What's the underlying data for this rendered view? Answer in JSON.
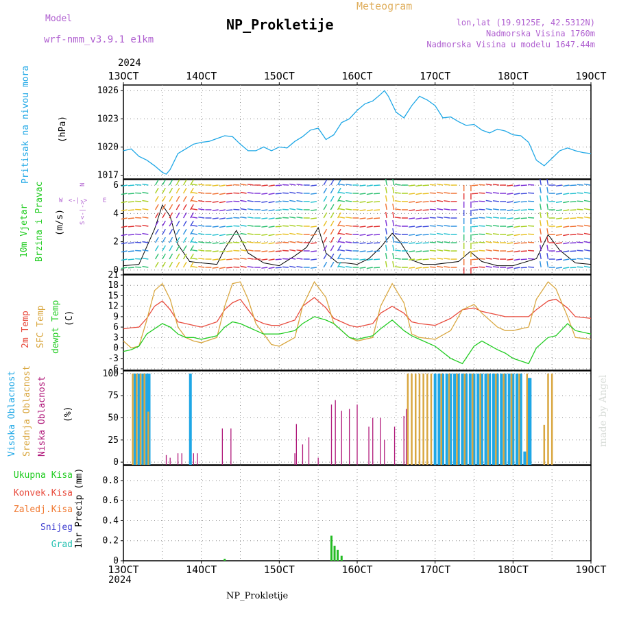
{
  "header": {
    "model_label": "Model",
    "model_name": "wrf-nmm_v3.9.1  e1km",
    "meteogram_label": "Meteogram",
    "station_title": "NP_Prokletije",
    "lonlat": "lon,lat (19.9125E, 42.5312N)",
    "elevation": "Nadmorska Visina 1760m",
    "model_elevation": "Nadmorska Visina u modelu 1647.44m",
    "year_top": "2024",
    "year_bottom": "2024",
    "footer_station": "NP_Prokletije",
    "watermark": "made by Angel"
  },
  "colors": {
    "pressure": "#1ea7e6",
    "temp2m": "#e84a3c",
    "sfc_temp": "#d9a740",
    "dewpt": "#22cc22",
    "high_cloud": "#1ea7e6",
    "mid_cloud": "#d9a740",
    "low_cloud": "#b0197a",
    "precip": "#22bb22",
    "grid": "#888888"
  },
  "panel_labels": {
    "pressure": {
      "name": "Pritisak na nivou mora",
      "unit": "(hPa)"
    },
    "wind": {
      "name1": "10m Vjetar",
      "name2": "Brzina i Pravac",
      "unit": "(m/s)",
      "compass_w": "W",
      "compass_e": "E",
      "compass_n": "N",
      "compass_s": "S",
      "compass_arrows": "<-|->"
    },
    "temp": {
      "name1": "2m Temp",
      "name2": "SFC Temp",
      "name3": "dewpt Temp",
      "unit": "(C)"
    },
    "cloud": {
      "name1": "Visoka Oblacnost",
      "name2": "Srednja Oblacnost",
      "name3": "Niska Oblacnost",
      "unit": "(%)"
    },
    "precip": {
      "items": [
        "Ukupna Kisa",
        "Konvek.Kisa",
        "Zaledj.Kisa",
        "Snijeg",
        "Grad"
      ],
      "unit": "1hr Precip (mm)"
    }
  },
  "chart_data": [
    {
      "type": "line",
      "panel": "pressure",
      "x_ticks": [
        "13OCT",
        "14OCT",
        "15OCT",
        "16OCT",
        "17OCT",
        "18OCT",
        "19OCT"
      ],
      "x_range_days": [
        13,
        19
      ],
      "y_ticks": [
        1017,
        1020,
        1023,
        1026
      ],
      "ylim": [
        1016.6,
        1026.6
      ],
      "ylabel": "(hPa)",
      "series": [
        {
          "name": "Pritisak na nivou mora",
          "x": [
            13.0,
            13.1,
            13.2,
            13.3,
            13.4,
            13.5,
            13.55,
            13.6,
            13.7,
            13.8,
            13.9,
            14.0,
            14.1,
            14.2,
            14.3,
            14.4,
            14.5,
            14.6,
            14.7,
            14.8,
            14.9,
            15.0,
            15.1,
            15.2,
            15.3,
            15.4,
            15.5,
            15.6,
            15.7,
            15.8,
            15.9,
            16.0,
            16.1,
            16.2,
            16.3,
            16.35,
            16.4,
            16.5,
            16.6,
            16.7,
            16.8,
            16.9,
            17.0,
            17.1,
            17.2,
            17.3,
            17.4,
            17.5,
            17.6,
            17.7,
            17.8,
            17.9,
            18.0,
            18.1,
            18.2,
            18.3,
            18.4,
            18.5,
            18.6,
            18.7,
            18.8,
            18.9,
            19.0
          ],
          "y": [
            1019.6,
            1019.8,
            1019.0,
            1018.6,
            1018.0,
            1017.3,
            1017.1,
            1017.6,
            1019.3,
            1019.8,
            1020.3,
            1020.5,
            1020.6,
            1020.9,
            1021.2,
            1021.1,
            1020.3,
            1019.6,
            1019.6,
            1020.0,
            1019.6,
            1020.0,
            1019.9,
            1020.6,
            1021.1,
            1021.8,
            1022.0,
            1020.8,
            1021.3,
            1022.6,
            1023.0,
            1023.9,
            1024.6,
            1024.9,
            1025.6,
            1026.0,
            1025.4,
            1023.7,
            1023.1,
            1024.4,
            1025.4,
            1025.0,
            1024.4,
            1023.1,
            1023.2,
            1022.7,
            1022.3,
            1022.4,
            1021.8,
            1021.5,
            1021.9,
            1021.7,
            1021.3,
            1021.2,
            1020.5,
            1018.6,
            1018.0,
            1018.8,
            1019.6,
            1019.9,
            1019.6,
            1019.4,
            1019.3
          ]
        }
      ]
    },
    {
      "type": "line",
      "panel": "wind",
      "x_range_days": [
        13,
        19
      ],
      "y_ticks": [
        0,
        2,
        4,
        6
      ],
      "ylim": [
        -0.3,
        6.4
      ],
      "ylabel": "(m/s)",
      "series": [
        {
          "name": "10m Vjetar Brzina",
          "x": [
            13.0,
            13.2,
            13.4,
            13.5,
            13.6,
            13.7,
            13.85,
            14.0,
            14.2,
            14.3,
            14.45,
            14.6,
            14.8,
            15.0,
            15.2,
            15.35,
            15.5,
            15.6,
            15.75,
            15.85,
            16.0,
            16.15,
            16.3,
            16.45,
            16.55,
            16.7,
            16.85,
            17.0,
            17.3,
            17.45,
            17.6,
            17.8,
            18.0,
            18.3,
            18.45,
            18.6,
            18.8,
            19.0
          ],
          "y": [
            0.3,
            0.4,
            2.9,
            4.6,
            3.8,
            1.8,
            0.6,
            0.5,
            0.4,
            1.5,
            2.8,
            1.2,
            0.5,
            0.3,
            1.0,
            1.6,
            3.0,
            1.2,
            0.5,
            0.5,
            0.4,
            0.8,
            1.6,
            2.6,
            2.0,
            0.7,
            0.4,
            0.4,
            0.6,
            1.3,
            0.6,
            0.3,
            0.3,
            0.8,
            2.5,
            1.4,
            0.5,
            0.4
          ]
        }
      ]
    },
    {
      "type": "line",
      "panel": "temperature",
      "x_range_days": [
        13,
        19
      ],
      "y_ticks": [
        -6,
        -3,
        0,
        3,
        6,
        9,
        12,
        15,
        18,
        21
      ],
      "ylim": [
        -6.4,
        21
      ],
      "ylabel": "(C)",
      "series": [
        {
          "name": "2m Temp",
          "x": [
            13.0,
            13.1,
            13.2,
            13.3,
            13.4,
            13.5,
            13.6,
            13.7,
            13.8,
            13.9,
            14.0,
            14.2,
            14.3,
            14.4,
            14.5,
            14.6,
            14.7,
            14.8,
            14.9,
            15.0,
            15.2,
            15.3,
            15.45,
            15.6,
            15.7,
            15.8,
            15.9,
            16.0,
            16.2,
            16.3,
            16.45,
            16.6,
            16.7,
            16.8,
            17.0,
            17.2,
            17.35,
            17.5,
            17.6,
            17.8,
            17.9,
            18.0,
            18.2,
            18.3,
            18.45,
            18.55,
            18.7,
            18.8,
            19.0
          ],
          "y": [
            5.5,
            5.8,
            6.0,
            8.5,
            12.0,
            13.5,
            11.0,
            7.5,
            7.0,
            6.5,
            6.0,
            7.5,
            11.0,
            13.0,
            14.0,
            11.0,
            8.0,
            7.0,
            6.5,
            6.5,
            8.0,
            12.0,
            14.5,
            11.5,
            8.5,
            7.5,
            6.5,
            6.0,
            7.0,
            10.0,
            12.0,
            10.0,
            7.5,
            7.0,
            6.5,
            8.5,
            11.0,
            11.5,
            10.5,
            9.5,
            9.0,
            9.0,
            9.0,
            11.0,
            13.5,
            14.0,
            11.5,
            9.0,
            8.5
          ]
        },
        {
          "name": "SFC Temp",
          "x": [
            13.0,
            13.1,
            13.2,
            13.3,
            13.4,
            13.5,
            13.6,
            13.7,
            13.8,
            13.9,
            14.0,
            14.2,
            14.3,
            14.4,
            14.5,
            14.6,
            14.7,
            14.8,
            14.9,
            15.0,
            15.2,
            15.3,
            15.45,
            15.6,
            15.7,
            15.8,
            15.9,
            16.0,
            16.2,
            16.3,
            16.45,
            16.6,
            16.7,
            16.8,
            17.0,
            17.2,
            17.35,
            17.5,
            17.6,
            17.8,
            17.9,
            18.0,
            18.2,
            18.3,
            18.45,
            18.55,
            18.7,
            18.8,
            19.0
          ],
          "y": [
            2.0,
            0.0,
            0.5,
            8.0,
            16.5,
            18.5,
            14.0,
            6.0,
            3.0,
            2.0,
            1.5,
            3.0,
            12.0,
            18.5,
            19.0,
            14.0,
            7.0,
            4.0,
            1.0,
            0.5,
            3.0,
            12.0,
            19.0,
            14.5,
            7.0,
            5.0,
            3.0,
            2.0,
            3.0,
            12.0,
            18.5,
            13.0,
            4.0,
            3.0,
            2.5,
            5.0,
            11.0,
            12.5,
            10.0,
            6.0,
            5.0,
            5.0,
            6.0,
            14.0,
            19.0,
            17.0,
            9.0,
            3.0,
            2.5
          ]
        },
        {
          "name": "dewpt Temp",
          "x": [
            13.0,
            13.1,
            13.2,
            13.3,
            13.4,
            13.5,
            13.6,
            13.7,
            13.8,
            13.9,
            14.0,
            14.2,
            14.3,
            14.4,
            14.5,
            14.6,
            14.7,
            14.8,
            14.9,
            15.0,
            15.2,
            15.3,
            15.45,
            15.6,
            15.7,
            15.8,
            15.9,
            16.0,
            16.2,
            16.3,
            16.45,
            16.6,
            16.7,
            16.8,
            17.0,
            17.2,
            17.35,
            17.5,
            17.6,
            17.8,
            17.9,
            18.0,
            18.2,
            18.3,
            18.45,
            18.55,
            18.7,
            18.8,
            19.0
          ],
          "y": [
            -1.0,
            -0.5,
            0.5,
            4.0,
            5.5,
            7.0,
            6.0,
            4.0,
            3.0,
            3.0,
            2.5,
            3.5,
            6.0,
            7.5,
            7.0,
            6.0,
            5.0,
            4.0,
            4.0,
            4.0,
            5.0,
            7.0,
            9.0,
            8.0,
            7.0,
            5.0,
            3.0,
            2.5,
            3.5,
            5.5,
            8.0,
            5.0,
            3.5,
            2.5,
            0.5,
            -3.0,
            -4.5,
            0.5,
            2.0,
            -0.5,
            -1.5,
            -3.0,
            -4.5,
            0.0,
            3.0,
            3.5,
            7.0,
            5.0,
            4.0
          ]
        }
      ]
    },
    {
      "type": "bar",
      "panel": "cloud",
      "x_range_days": [
        13,
        19
      ],
      "y_ticks": [
        0,
        25,
        50,
        75,
        100
      ],
      "ylim": [
        -3,
        103
      ],
      "ylabel": "(%)",
      "series": [
        {
          "name": "Visoka Oblacnost",
          "x": [
            13.15,
            13.2,
            13.25,
            13.3,
            13.33,
            13.86,
            17.0,
            17.05,
            17.1,
            17.15,
            17.2,
            17.25,
            17.3,
            17.35,
            17.4,
            17.45,
            17.5,
            17.55,
            17.6,
            17.65,
            17.7,
            17.75,
            17.8,
            17.85,
            17.9,
            17.95,
            18.0,
            18.05,
            18.1,
            18.15,
            18.2,
            18.22
          ],
          "y": [
            100,
            100,
            100,
            100,
            100,
            100,
            100,
            100,
            100,
            100,
            100,
            100,
            100,
            100,
            100,
            100,
            100,
            100,
            100,
            100,
            100,
            100,
            100,
            100,
            100,
            100,
            100,
            100,
            100,
            12,
            95,
            95
          ]
        },
        {
          "name": "Srednja Oblacnost",
          "x": [
            13.12,
            13.17,
            13.22,
            13.27,
            13.32,
            16.65,
            16.7,
            16.75,
            16.8,
            16.85,
            16.9,
            16.95,
            17.08,
            17.18,
            17.28,
            17.38,
            17.48,
            17.58,
            17.68,
            17.78,
            17.88,
            17.98,
            18.08,
            18.18,
            18.4,
            18.45,
            18.5
          ],
          "y": [
            100,
            100,
            100,
            100,
            57,
            100,
            100,
            100,
            100,
            100,
            100,
            100,
            100,
            100,
            100,
            100,
            100,
            100,
            100,
            100,
            100,
            100,
            100,
            100,
            42,
            100,
            100
          ]
        },
        {
          "name": "Niska Oblacnost",
          "x": [
            13.55,
            13.6,
            13.7,
            13.75,
            13.9,
            13.95,
            14.27,
            14.38,
            15.2,
            15.22,
            15.3,
            15.38,
            15.5,
            15.67,
            15.72,
            15.8,
            15.9,
            16.0,
            16.15,
            16.2,
            16.3,
            16.35,
            16.48,
            16.6,
            16.63
          ],
          "y": [
            8,
            5,
            10,
            10,
            10,
            10,
            38,
            38,
            10,
            43,
            20,
            28,
            5,
            65,
            70,
            58,
            60,
            65,
            40,
            50,
            50,
            25,
            40,
            52,
            60
          ]
        }
      ]
    },
    {
      "type": "bar",
      "panel": "precip",
      "x_range_days": [
        13,
        19
      ],
      "y_ticks": [
        0,
        0.2,
        0.4,
        0.6,
        0.8
      ],
      "ylim": [
        0,
        0.95
      ],
      "ylabel": "1hr Precip (mm)",
      "series": [
        {
          "name": "Ukupna Kisa",
          "x": [
            14.3,
            15.67,
            15.71,
            15.75,
            15.8
          ],
          "y": [
            0.02,
            0.25,
            0.15,
            0.11,
            0.05
          ]
        }
      ]
    }
  ]
}
